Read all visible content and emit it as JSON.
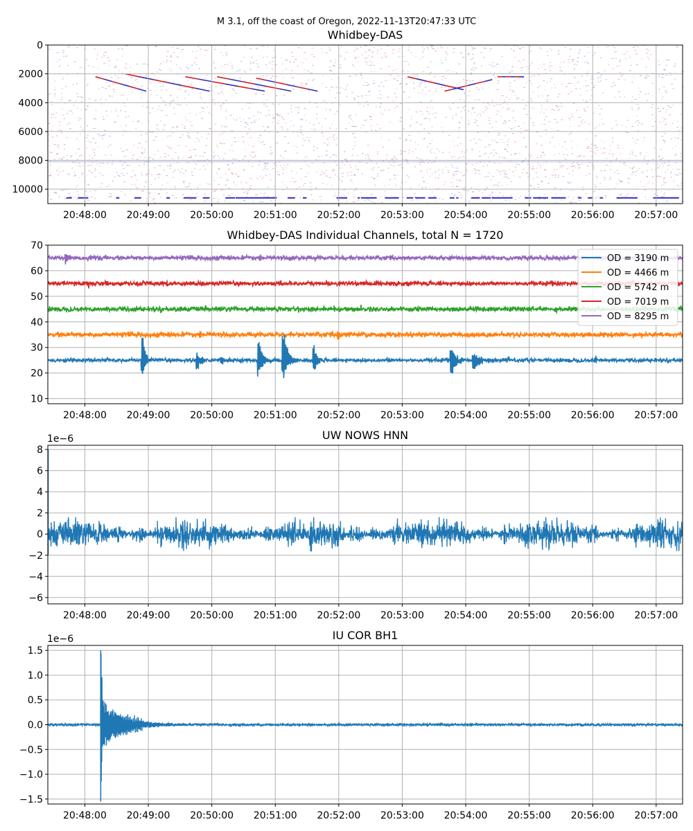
{
  "figure": {
    "suptitle": "M 3.1, off the coast of Oregon, 2022-11-13T20:47:33 UTC"
  },
  "chart_data": [
    {
      "type": "heatmap",
      "title": "Whidbey-DAS",
      "xlabel": "",
      "ylabel": "",
      "x_tick_labels": [
        "20:48:00",
        "20:49:00",
        "20:50:00",
        "20:51:00",
        "20:52:00",
        "20:53:00",
        "20:54:00",
        "20:55:00",
        "20:56:00",
        "20:57:00"
      ],
      "x_range": [
        "20:47:25",
        "20:57:25"
      ],
      "y_tick_labels": [
        "0",
        "2000",
        "4000",
        "6000",
        "8000",
        "10000"
      ],
      "y_ticks": [
        0,
        2000,
        4000,
        6000,
        8000,
        10000
      ],
      "ylim": [
        11000,
        0
      ],
      "y_inverted": true,
      "colormap": "seismic",
      "grid": true,
      "colors": {
        "positive": "#d7191c",
        "negative": "#2c2cbd",
        "background": "#ffffff"
      },
      "moveouts": [
        {
          "t_start": "20:48:10",
          "t_end": "20:48:58",
          "y_start": 2200,
          "y_end": 3200
        },
        {
          "t_start": "20:48:38",
          "t_end": "20:49:58",
          "y_start": 2000,
          "y_end": 3200
        },
        {
          "t_start": "20:49:35",
          "t_end": "20:50:50",
          "y_start": 2200,
          "y_end": 3200
        },
        {
          "t_start": "20:50:05",
          "t_end": "20:51:15",
          "y_start": 2200,
          "y_end": 3200
        },
        {
          "t_start": "20:50:42",
          "t_end": "20:51:40",
          "y_start": 2300,
          "y_end": 3200
        },
        {
          "t_start": "20:53:05",
          "t_end": "20:53:58",
          "y_start": 2200,
          "y_end": 3100
        },
        {
          "t_start": "20:53:40",
          "t_end": "20:54:25",
          "y_start": 3200,
          "y_end": 2400
        },
        {
          "t_start": "20:54:30",
          "t_end": "20:54:55",
          "y_start": 2200,
          "y_end": 2200
        }
      ]
    },
    {
      "type": "line",
      "title": "Whidbey-DAS Individual Channels, total N = 1720",
      "xlabel": "",
      "ylabel": "",
      "x_tick_labels": [
        "20:48:00",
        "20:49:00",
        "20:50:00",
        "20:51:00",
        "20:52:00",
        "20:53:00",
        "20:54:00",
        "20:55:00",
        "20:56:00",
        "20:57:00"
      ],
      "x_range": [
        "20:47:25",
        "20:57:25"
      ],
      "y_tick_labels": [
        "10",
        "20",
        "30",
        "40",
        "50",
        "60",
        "70"
      ],
      "y_ticks": [
        10,
        20,
        30,
        40,
        50,
        60,
        70
      ],
      "ylim": [
        8,
        70
      ],
      "grid": true,
      "legend_position": "upper-right",
      "series": [
        {
          "name": "OD = 3190 m",
          "color": "#1f77b4",
          "baseline": 25,
          "noise": 0.35,
          "events": [
            {
              "t": "20:48:55",
              "amp": 10.5,
              "dur": 8
            },
            {
              "t": "20:49:47",
              "amp": 4,
              "dur": 12
            },
            {
              "t": "20:50:10",
              "amp": 1.5,
              "dur": 15
            },
            {
              "t": "20:50:45",
              "amp": 8.5,
              "dur": 12
            },
            {
              "t": "20:51:08",
              "amp": 12.5,
              "dur": 14
            },
            {
              "t": "20:51:37",
              "amp": 6.5,
              "dur": 8
            },
            {
              "t": "20:53:47",
              "amp": 6.5,
              "dur": 14
            },
            {
              "t": "20:54:08",
              "amp": 4,
              "dur": 20
            },
            {
              "t": "20:56:03",
              "amp": 1.2,
              "dur": 5
            }
          ]
        },
        {
          "name": "OD = 4466 m",
          "color": "#ff7f0e",
          "baseline": 35,
          "noise": 0.45,
          "events": [
            {
              "t": "20:52:00",
              "amp": 2,
              "dur": 4
            }
          ]
        },
        {
          "name": "OD = 5742 m",
          "color": "#2ca02c",
          "baseline": 45,
          "noise": 0.45,
          "events": []
        },
        {
          "name": "OD = 7019 m",
          "color": "#d62728",
          "baseline": 55,
          "noise": 0.4,
          "events": []
        },
        {
          "name": "OD = 8295 m",
          "color": "#9467bd",
          "baseline": 65,
          "noise": 0.4,
          "events": [
            {
              "t": "20:47:43",
              "amp": 2.5,
              "dur": 2
            }
          ]
        }
      ]
    },
    {
      "type": "line",
      "title": "UW NOWS HNN",
      "xlabel": "",
      "ylabel": "",
      "offset_text": "1e−6",
      "x_tick_labels": [
        "20:48:00",
        "20:49:00",
        "20:50:00",
        "20:51:00",
        "20:52:00",
        "20:53:00",
        "20:54:00",
        "20:55:00",
        "20:56:00",
        "20:57:00"
      ],
      "x_range": [
        "20:47:25",
        "20:57:25"
      ],
      "y_tick_labels": [
        "−6",
        "−4",
        "−2",
        "0",
        "2",
        "4",
        "6",
        "8"
      ],
      "y_ticks": [
        -6,
        -4,
        -2,
        0,
        2,
        4,
        6,
        8
      ],
      "ylim": [
        -6.6,
        8.4
      ],
      "grid": true,
      "series": [
        {
          "name": "",
          "color": "#1f77b4",
          "baseline": 0,
          "noise": 0.55,
          "spike": {
            "t": "20:47:25",
            "max": 8,
            "min": -2
          }
        }
      ]
    },
    {
      "type": "line",
      "title": "IU COR BH1",
      "xlabel": "",
      "ylabel": "",
      "offset_text": "1e−6",
      "x_tick_labels": [
        "20:48:00",
        "20:49:00",
        "20:50:00",
        "20:51:00",
        "20:52:00",
        "20:53:00",
        "20:54:00",
        "20:55:00",
        "20:56:00",
        "20:57:00"
      ],
      "x_range": [
        "20:47:25",
        "20:57:25"
      ],
      "y_tick_labels": [
        "−1.5",
        "−1.0",
        "−0.5",
        "0.0",
        "0.5",
        "1.0",
        "1.5"
      ],
      "y_ticks": [
        -1.5,
        -1.0,
        -0.5,
        0.0,
        0.5,
        1.0,
        1.5
      ],
      "ylim": [
        -1.6,
        1.6
      ],
      "grid": true,
      "series": [
        {
          "name": "",
          "color": "#1f77b4",
          "baseline": 0,
          "noise": 0.012,
          "event": {
            "t": "20:48:15",
            "peak": 1.5,
            "trough": -1.55,
            "decay_s": 20
          }
        }
      ]
    }
  ]
}
